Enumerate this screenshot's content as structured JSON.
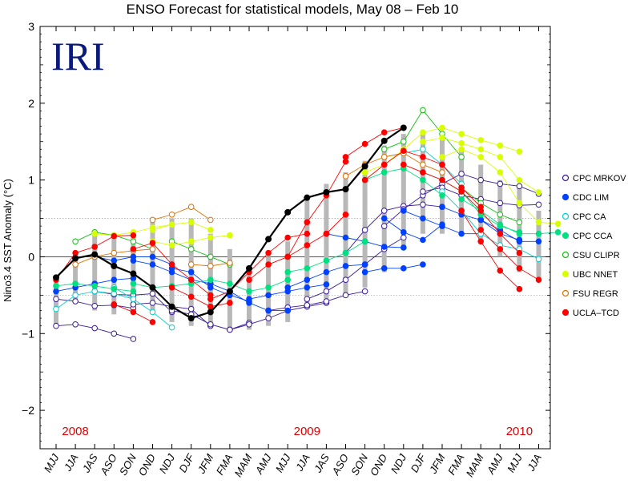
{
  "chart_data": {
    "type": "line",
    "title": "ENSO Forecast for statistical models, May 08 – Feb 10",
    "ylabel": "Nino3.4 SST Anomaly (°C)",
    "logo": "IRI",
    "ylim": [
      -2.5,
      3
    ],
    "yticks": [
      "−2",
      "−1",
      "0",
      "1",
      "2",
      "3"
    ],
    "ytick_values": [
      -2,
      -1,
      0,
      1,
      2,
      3
    ],
    "reference_lines": [
      0.5,
      -0.5
    ],
    "categories": [
      "MJJ",
      "JJA",
      "JAS",
      "ASO",
      "SON",
      "OND",
      "NDJ",
      "DJF",
      "JFM",
      "FMA",
      "MAM",
      "AMJ",
      "MJJ",
      "JJA",
      "JAS",
      "ASO",
      "SON",
      "OND",
      "NDJ",
      "DJF",
      "JFM",
      "FMA",
      "MAM",
      "AMJ",
      "MJJ",
      "JJA"
    ],
    "years": [
      {
        "label": "2008",
        "at_index": 1
      },
      {
        "label": "2009",
        "at_index": 13
      },
      {
        "label": "2010",
        "at_index": 24
      }
    ],
    "year_color": "#e00000",
    "observed": {
      "color": "#000000",
      "values": [
        -0.27,
        -0.02,
        0.03,
        -0.12,
        -0.22,
        -0.4,
        -0.65,
        -0.8,
        -0.72,
        -0.45,
        -0.15,
        0.23,
        0.58,
        0.77,
        0.84,
        0.88,
        1.18,
        1.51,
        1.68
      ]
    },
    "legend": [
      {
        "name": "CPC MRKOV",
        "color": "#3a1a9a",
        "filled": false
      },
      {
        "name": "CDC LIM",
        "color": "#0040ff",
        "filled": true
      },
      {
        "name": "CPC CA",
        "color": "#00d0d0",
        "filled": false
      },
      {
        "name": "CPC CCA",
        "color": "#00e080",
        "filled": true
      },
      {
        "name": "CSU CLIPR",
        "color": "#10c010",
        "filled": false
      },
      {
        "name": "UBC NNET",
        "color": "#d8ff00",
        "filled": true
      },
      {
        "name": "FSU REGR",
        "color": "#e07000",
        "filled": false
      },
      {
        "name": "UCLA–TCD",
        "color": "#ff0000",
        "filled": true
      }
    ],
    "forecasts": [
      {
        "model": "CPC MRKOV",
        "start": 0,
        "values": [
          -0.9,
          -0.88,
          -0.93,
          -1.0,
          -1.07
        ]
      },
      {
        "model": "CPC MRKOV",
        "start": 0,
        "values": [
          -0.55,
          -0.58,
          -0.64,
          -0.63,
          -0.67
        ]
      },
      {
        "model": "CPC MRKOV",
        "start": 2,
        "values": [
          -0.45,
          -0.49,
          -0.5,
          -0.48,
          -0.72
        ]
      },
      {
        "model": "CPC MRKOV",
        "start": 4,
        "values": [
          -0.62,
          -0.6,
          -0.65,
          -0.68,
          -0.9
        ]
      },
      {
        "model": "CPC MRKOV",
        "start": 6,
        "values": [
          -0.7,
          -0.75,
          -0.88,
          -0.95,
          -0.86
        ]
      },
      {
        "model": "CPC MRKOV",
        "start": 9,
        "values": [
          -0.95,
          -0.88,
          -0.8,
          -0.7,
          -0.65,
          -0.6
        ]
      },
      {
        "model": "CPC MRKOV",
        "start": 11,
        "values": [
          -0.7,
          -0.66,
          -0.63,
          -0.58,
          -0.5,
          -0.45
        ]
      },
      {
        "model": "CPC MRKOV",
        "start": 13,
        "values": [
          -0.55,
          -0.45,
          -0.3,
          -0.1,
          0.1,
          0.25
        ]
      },
      {
        "model": "CPC MRKOV",
        "start": 15,
        "values": [
          0.05,
          0.35,
          0.6,
          0.66,
          0.68,
          0.65
        ]
      },
      {
        "model": "CPC MRKOV",
        "start": 17,
        "values": [
          0.4,
          0.62,
          0.8,
          0.95,
          1.08,
          1.0,
          0.95,
          0.92,
          0.82
        ]
      },
      {
        "model": "CPC MRKOV",
        "start": 19,
        "values": [
          0.85,
          0.9,
          0.8,
          0.75,
          0.7,
          0.67,
          0.68
        ]
      },
      {
        "model": "CDC LIM",
        "start": 0,
        "values": [
          -0.45,
          -0.4,
          -0.35,
          -0.3,
          -0.28
        ]
      },
      {
        "model": "CDC LIM",
        "start": 2,
        "values": [
          0.0,
          -0.05,
          0.0,
          0.0,
          -0.1
        ]
      },
      {
        "model": "CDC LIM",
        "start": 4,
        "values": [
          -0.05,
          -0.1,
          -0.2,
          -0.3,
          -0.35
        ]
      },
      {
        "model": "CDC LIM",
        "start": 6,
        "values": [
          -0.15,
          -0.2,
          -0.4,
          -0.5,
          -0.58
        ]
      },
      {
        "model": "CDC LIM",
        "start": 8,
        "values": [
          -0.35,
          -0.45,
          -0.6,
          -0.7,
          -0.7
        ]
      },
      {
        "model": "CDC LIM",
        "start": 10,
        "values": [
          -0.55,
          -0.5,
          -0.45,
          -0.4,
          -0.36
        ]
      },
      {
        "model": "CDC LIM",
        "start": 12,
        "values": [
          -0.4,
          -0.3,
          -0.2,
          -0.12,
          -0.1
        ]
      },
      {
        "model": "CDC LIM",
        "start": 14,
        "values": [
          0.3,
          0.25,
          0.2,
          0.13,
          0.12
        ]
      },
      {
        "model": "CDC LIM",
        "start": 16,
        "values": [
          -0.2,
          -0.15,
          -0.15,
          -0.1
        ]
      },
      {
        "model": "CDC LIM",
        "start": 17,
        "values": [
          0.5,
          0.32,
          0.22,
          0.42
        ]
      },
      {
        "model": "CDC LIM",
        "start": 18,
        "values": [
          0.6,
          0.5,
          0.4,
          0.3,
          0.3
        ]
      },
      {
        "model": "CDC LIM",
        "start": 20,
        "values": [
          0.65,
          0.55,
          0.48,
          0.3,
          0.22
        ]
      },
      {
        "model": "CDC LIM",
        "start": 22,
        "values": [
          0.48,
          0.35,
          0.2,
          0.2
        ]
      },
      {
        "model": "CPC CA",
        "start": 0,
        "values": [
          -0.68,
          -0.5,
          -0.45,
          -0.48,
          -0.55
        ]
      },
      {
        "model": "CPC CA",
        "start": 3,
        "values": [
          -0.4,
          -0.55,
          -0.72,
          -0.92
        ]
      },
      {
        "model": "CPC CA",
        "start": 17,
        "values": [
          1.3,
          1.35,
          1.4,
          1.2,
          0.95
        ]
      },
      {
        "model": "CPC CA",
        "start": 20,
        "values": [
          0.85,
          0.6,
          0.3,
          0.15,
          0.1,
          -0.03
        ]
      },
      {
        "model": "CPC CCA",
        "start": 0,
        "values": [
          -0.38,
          -0.35,
          -0.38,
          -0.42,
          -0.45
        ]
      },
      {
        "model": "CPC CCA",
        "start": 4,
        "values": [
          -0.35,
          -0.4,
          -0.38,
          -0.35,
          -0.3
        ]
      },
      {
        "model": "CPC CCA",
        "start": 8,
        "values": [
          -0.3,
          -0.35,
          -0.45,
          -0.4,
          -0.3
        ]
      },
      {
        "model": "CPC CCA",
        "start": 12,
        "values": [
          -0.2,
          -0.15,
          -0.05,
          0.05,
          0.2
        ]
      },
      {
        "model": "CPC CCA",
        "start": 16,
        "values": [
          1.0,
          1.1,
          1.15,
          1.0,
          0.8
        ]
      },
      {
        "model": "CPC CCA",
        "start": 19,
        "values": [
          1.1,
          1.0,
          0.85,
          0.55,
          0.4,
          0.32
        ]
      },
      {
        "model": "CPC CCA",
        "start": 21,
        "values": [
          0.75,
          0.6,
          0.42,
          0.3,
          0.3,
          0.32
        ]
      },
      {
        "model": "CSU CLIPR",
        "start": 1,
        "values": [
          0.2,
          0.32,
          0.28,
          0.2,
          0.1
        ]
      },
      {
        "model": "CSU CLIPR",
        "start": 6,
        "values": [
          0.2,
          0.1,
          0.0,
          -0.1
        ]
      },
      {
        "model": "CSU CLIPR",
        "start": 17,
        "values": [
          1.4,
          1.5,
          1.91,
          1.6,
          1.3
        ]
      },
      {
        "model": "CSU CLIPR",
        "start": 21,
        "values": [
          0.9,
          0.7,
          0.55,
          0.45
        ]
      },
      {
        "model": "UBC NNET",
        "start": 2,
        "values": [
          0.3,
          0.28,
          0.32,
          0.38,
          0.42
        ]
      },
      {
        "model": "UBC NNET",
        "start": 5,
        "values": [
          0.2,
          0.15,
          0.2,
          0.25,
          0.28
        ]
      },
      {
        "model": "UBC NNET",
        "start": 5,
        "values": [
          0.35,
          0.42,
          0.45,
          0.35
        ]
      },
      {
        "model": "UBC NNET",
        "start": 16,
        "values": [
          1.1,
          1.2,
          1.4,
          1.62,
          1.68,
          1.6,
          1.52,
          1.45,
          1.37
        ]
      },
      {
        "model": "UBC NNET",
        "start": 19,
        "values": [
          1.5,
          1.55,
          1.48,
          1.4,
          1.3,
          1.0,
          0.84
        ]
      },
      {
        "model": "UBC NNET",
        "start": 20,
        "values": [
          1.3,
          1.4,
          1.3,
          1.1,
          0.7,
          0.45,
          0.43
        ]
      },
      {
        "model": "FSU REGR",
        "start": 1,
        "values": [
          -0.1,
          0.0,
          0.05,
          0.08,
          0.1
        ]
      },
      {
        "model": "FSU REGR",
        "start": 5,
        "values": [
          0.48,
          0.55,
          0.65,
          0.48
        ]
      },
      {
        "model": "FSU REGR",
        "start": 7,
        "values": [
          -0.1,
          -0.12,
          -0.08
        ]
      },
      {
        "model": "FSU REGR",
        "start": 15,
        "values": [
          1.05,
          1.2,
          1.3,
          1.35,
          1.2,
          1.1
        ]
      },
      {
        "model": "UCLA–TCD",
        "start": 0,
        "values": [
          -0.3,
          0.05,
          0.13,
          0.27,
          0.28
        ]
      },
      {
        "model": "UCLA–TCD",
        "start": 3,
        "values": [
          -0.62,
          -0.72,
          -0.85
        ]
      },
      {
        "model": "UCLA–TCD",
        "start": 4,
        "values": [
          0.1,
          0.18,
          -0.1,
          -0.3,
          -0.5
        ]
      },
      {
        "model": "UCLA–TCD",
        "start": 6,
        "values": [
          -0.4,
          -0.52,
          -0.65,
          -0.6
        ]
      },
      {
        "model": "UCLA–TCD",
        "start": 8,
        "values": [
          -0.55,
          -0.45,
          -0.2,
          0.05,
          0.25,
          0.3
        ]
      },
      {
        "model": "UCLA–TCD",
        "start": 10,
        "values": [
          -0.3,
          -0.1,
          0.0,
          0.15,
          0.3,
          0.55
        ]
      },
      {
        "model": "UCLA–TCD",
        "start": 12,
        "values": [
          0.0,
          0.45,
          0.8,
          1.24
        ]
      },
      {
        "model": "UCLA–TCD",
        "start": 15,
        "values": [
          1.3,
          1.47,
          1.62,
          1.68
        ]
      },
      {
        "model": "UCLA–TCD",
        "start": 16,
        "values": [
          1.0,
          1.2,
          1.38,
          1.3,
          1.2,
          0.9,
          0.65
        ]
      },
      {
        "model": "UCLA–TCD",
        "start": 18,
        "values": [
          1.2,
          1.1,
          1.0,
          0.85,
          0.6,
          0.3,
          0.05
        ]
      },
      {
        "model": "UCLA–TCD",
        "start": 21,
        "values": [
          0.6,
          0.2,
          -0.18,
          -0.42
        ]
      },
      {
        "model": "UCLA–TCD",
        "start": 22,
        "values": [
          0.35,
          0.1,
          -0.15,
          -0.3
        ]
      }
    ],
    "spread_bars": [
      {
        "index": 0,
        "low": -0.9,
        "high": -0.3
      },
      {
        "index": 1,
        "low": -0.6,
        "high": 0.05
      },
      {
        "index": 2,
        "low": -0.7,
        "high": 0.3
      },
      {
        "index": 3,
        "low": -0.75,
        "high": 0.28
      },
      {
        "index": 4,
        "low": -0.75,
        "high": 0.32
      },
      {
        "index": 5,
        "low": -0.7,
        "high": 0.45
      },
      {
        "index": 6,
        "low": -0.85,
        "high": 0.5
      },
      {
        "index": 7,
        "low": -0.9,
        "high": 0.5
      },
      {
        "index": 8,
        "low": -0.9,
        "high": 0.3
      },
      {
        "index": 9,
        "low": -0.95,
        "high": 0.1
      },
      {
        "index": 10,
        "low": -0.95,
        "high": -0.2
      },
      {
        "index": 11,
        "low": -0.9,
        "high": 0.0
      },
      {
        "index": 12,
        "low": -0.85,
        "high": 0.2
      },
      {
        "index": 13,
        "low": -0.65,
        "high": 0.75
      },
      {
        "index": 14,
        "low": -0.6,
        "high": 0.95
      },
      {
        "index": 15,
        "low": -0.5,
        "high": 1.1
      },
      {
        "index": 16,
        "low": -0.4,
        "high": 1.25
      },
      {
        "index": 17,
        "low": -0.2,
        "high": 1.45
      },
      {
        "index": 18,
        "low": 0.1,
        "high": 1.6
      },
      {
        "index": 19,
        "low": 0.3,
        "high": 1.6
      },
      {
        "index": 20,
        "low": 0.3,
        "high": 1.6
      },
      {
        "index": 21,
        "low": 0.3,
        "high": 1.4
      },
      {
        "index": 22,
        "low": 0.2,
        "high": 1.2
      },
      {
        "index": 23,
        "low": 0.0,
        "high": 1.0
      },
      {
        "index": 24,
        "low": -0.2,
        "high": 0.9
      },
      {
        "index": 25,
        "low": -0.3,
        "high": 0.6
      }
    ]
  }
}
